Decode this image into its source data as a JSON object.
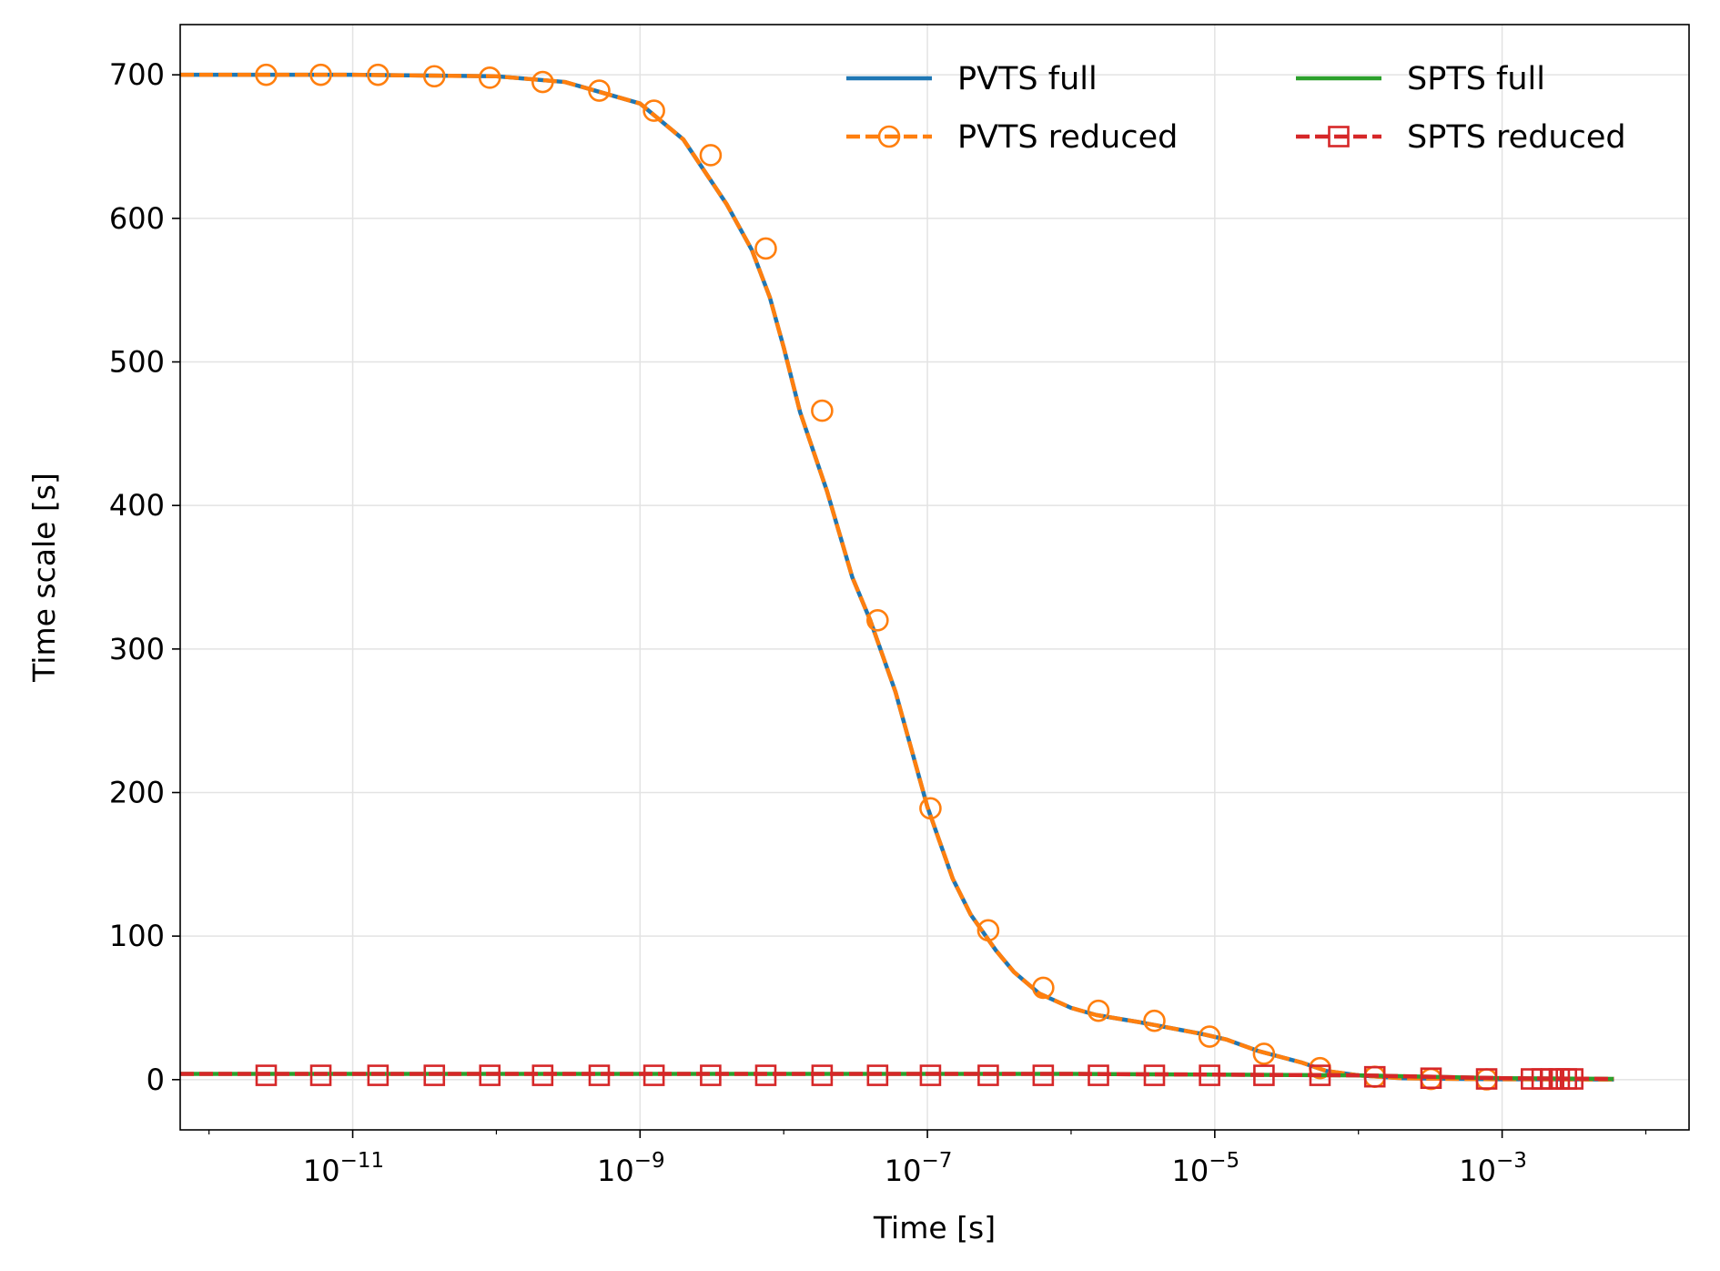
{
  "chart_data": {
    "type": "line",
    "xlabel": "Time [s]",
    "ylabel": "Time scale [s]",
    "xscale": "log",
    "xlim": [
      6.3e-13,
      0.02
    ],
    "ylim": [
      -35,
      735
    ],
    "grid": true,
    "legend": {
      "placement": "top-right",
      "columns": 2
    },
    "x_ticks": [
      {
        "value": 1e-11,
        "base": "10",
        "exponent": "−11"
      },
      {
        "value": 1e-09,
        "base": "10",
        "exponent": "−9"
      },
      {
        "value": 1e-07,
        "base": "10",
        "exponent": "−7"
      },
      {
        "value": 1e-05,
        "base": "10",
        "exponent": "−5"
      },
      {
        "value": 0.001,
        "base": "10",
        "exponent": "−3"
      }
    ],
    "y_ticks": [
      0,
      100,
      200,
      300,
      400,
      500,
      600,
      700
    ],
    "y_tick_labels": [
      "0",
      "100",
      "200",
      "300",
      "400",
      "500",
      "600",
      "700"
    ],
    "series": [
      {
        "name": "PVTS full",
        "color": "#1f77b4",
        "style": "solid",
        "marker": "none",
        "x": [
          6.3e-13,
          1e-12,
          1e-11,
          1e-10,
          3e-10,
          1e-09,
          2e-09,
          4e-09,
          6e-09,
          8e-09,
          1e-08,
          1.3e-08,
          2e-08,
          3e-08,
          4e-08,
          6e-08,
          1e-07,
          1.5e-07,
          2e-07,
          3e-07,
          4e-07,
          6e-07,
          1e-06,
          1.5e-06,
          3e-06,
          8e-06,
          1.2e-05,
          2e-05,
          4e-05,
          6e-05,
          0.0001,
          0.0002,
          0.0005,
          0.001,
          0.003,
          0.006
        ],
        "y": [
          700,
          700,
          700,
          699,
          695,
          680,
          655,
          610,
          578,
          545,
          510,
          465,
          410,
          350,
          320,
          270,
          190,
          140,
          115,
          90,
          75,
          60,
          50,
          45,
          40,
          32,
          28,
          20,
          12,
          6,
          3,
          1,
          0.5,
          0.3,
          0.2,
          0.1
        ]
      },
      {
        "name": "PVTS reduced",
        "color": "#ff7f0e",
        "style": "dashed",
        "marker": "circle",
        "x": [
          6.3e-13,
          1e-12,
          1e-11,
          1e-10,
          3e-10,
          1e-09,
          2e-09,
          4e-09,
          6e-09,
          8e-09,
          1e-08,
          1.3e-08,
          2e-08,
          3e-08,
          4e-08,
          6e-08,
          1e-07,
          1.5e-07,
          2e-07,
          3e-07,
          4e-07,
          6e-07,
          1e-06,
          1.5e-06,
          3e-06,
          8e-06,
          1.2e-05,
          2e-05,
          4e-05,
          6e-05,
          0.0001,
          0.0002,
          0.0005,
          0.001,
          0.003,
          0.006
        ],
        "y": [
          700,
          700,
          700,
          699,
          695,
          680,
          655,
          610,
          578,
          545,
          510,
          465,
          410,
          350,
          320,
          270,
          190,
          140,
          115,
          90,
          75,
          60,
          50,
          45,
          40,
          32,
          28,
          20,
          12,
          6,
          3,
          1,
          0.5,
          0.3,
          0.2,
          0.1
        ],
        "marker_x": [
          2.5e-12,
          6e-12,
          1.5e-11,
          3.7e-11,
          9e-11,
          2.1e-10,
          5.2e-10,
          1.25e-09,
          3.1e-09,
          7.5e-09,
          1.85e-08,
          4.5e-08,
          1.05e-07,
          2.65e-07,
          6.4e-07,
          1.55e-06,
          3.8e-06,
          9.2e-06,
          2.2e-05,
          5.4e-05,
          0.00013,
          0.00032,
          0.00078
        ],
        "marker_y": [
          700,
          700,
          700,
          699,
          698,
          695,
          689,
          675,
          644,
          579,
          466,
          320,
          189,
          104,
          64,
          48,
          41,
          30,
          18,
          8,
          2,
          0.5,
          0.2
        ]
      },
      {
        "name": "SPTS full",
        "color": "#2ca02c",
        "style": "solid",
        "marker": "none",
        "x": [
          6.3e-13,
          1e-09,
          1e-06,
          0.0001,
          0.001,
          0.006
        ],
        "y": [
          4,
          4,
          4,
          3,
          1,
          0.5
        ]
      },
      {
        "name": "SPTS reduced",
        "color": "#d62728",
        "style": "dashed",
        "marker": "square",
        "x": [
          6.3e-13,
          1e-09,
          1e-06,
          0.0001,
          0.001,
          0.006
        ],
        "y": [
          4,
          4,
          4,
          3,
          1,
          0.5
        ],
        "marker_x": [
          2.5e-12,
          6e-12,
          1.5e-11,
          3.7e-11,
          9e-11,
          2.1e-10,
          5.2e-10,
          1.25e-09,
          3.1e-09,
          7.5e-09,
          1.85e-08,
          4.5e-08,
          1.05e-07,
          2.65e-07,
          6.4e-07,
          1.55e-06,
          3.8e-06,
          9.2e-06,
          2.2e-05,
          5.4e-05,
          0.00013,
          0.00032,
          0.00078,
          0.0016,
          0.0019,
          0.0022,
          0.0025,
          0.0028,
          0.0031
        ],
        "marker_y": [
          3,
          3,
          3,
          3,
          3,
          3,
          3,
          3,
          3,
          3,
          3,
          3,
          3,
          3,
          3,
          3,
          3,
          3,
          3,
          3,
          2,
          1,
          0.5,
          0.5,
          0.5,
          0.5,
          0.5,
          0.5,
          0.5
        ]
      }
    ]
  }
}
